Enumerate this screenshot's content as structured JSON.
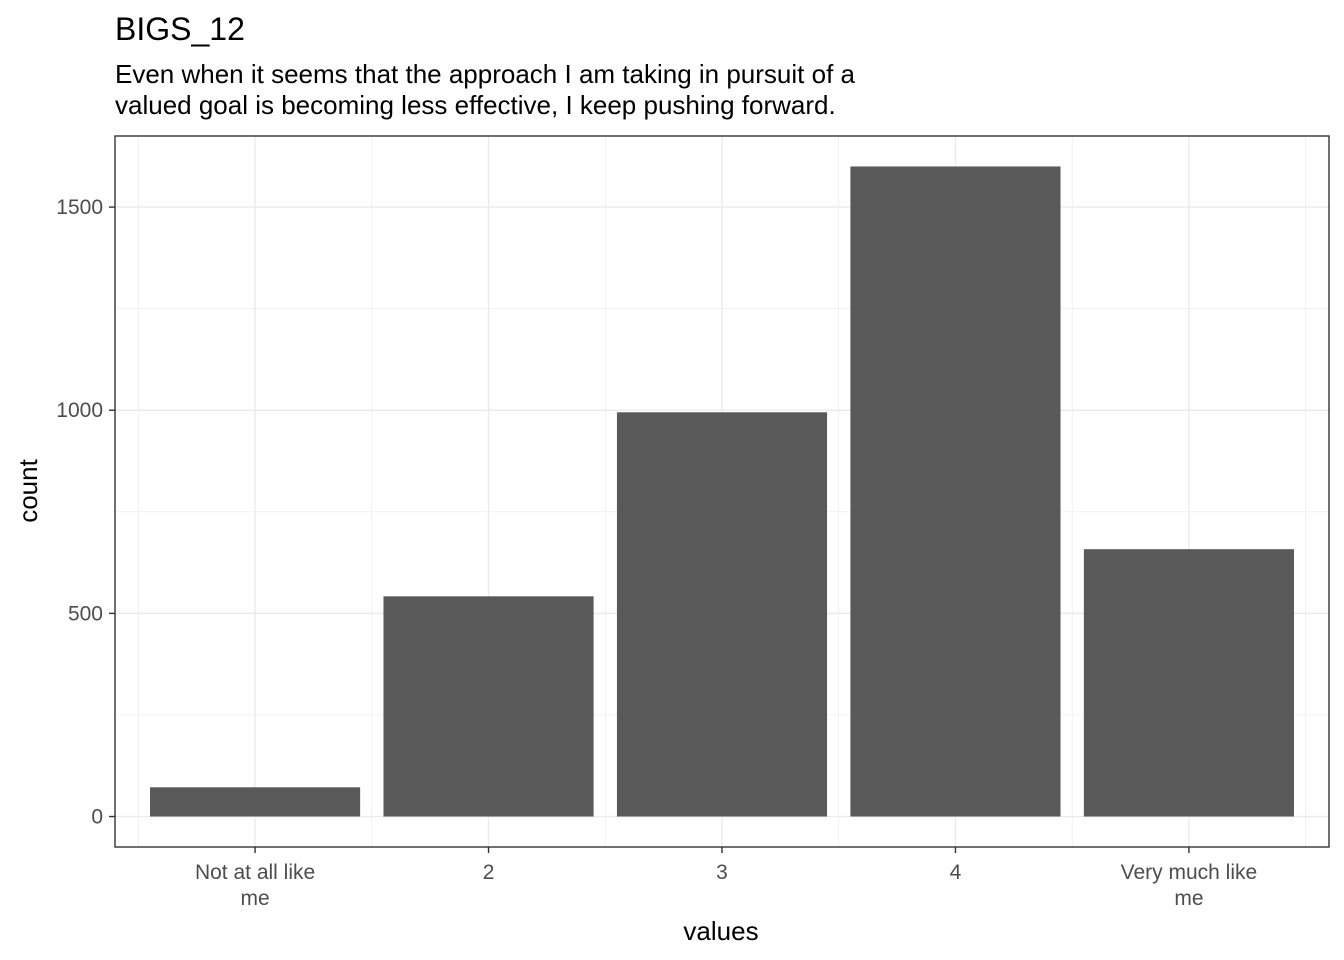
{
  "chart_data": {
    "type": "bar",
    "title": "BIGS_12",
    "subtitle": [
      "Even when it seems that the approach I am taking in pursuit of a",
      "valued goal is becoming less effective, I keep pushing forward."
    ],
    "xlabel": "values",
    "ylabel": "count",
    "categories": [
      [
        "Not at all like",
        "me"
      ],
      [
        "2"
      ],
      [
        "3"
      ],
      [
        "4"
      ],
      [
        "Very much like",
        "me"
      ]
    ],
    "values": [
      72,
      542,
      995,
      1600,
      658
    ],
    "ylim": [
      -75,
      1675
    ],
    "yticks": [
      0,
      500,
      1000,
      1500
    ],
    "ytick_labels": [
      "0",
      "500",
      "1000",
      "1500"
    ],
    "grid": true,
    "bar_color": "#595959",
    "panel_border_color": "#333333",
    "grid_color": "#ebebeb"
  }
}
